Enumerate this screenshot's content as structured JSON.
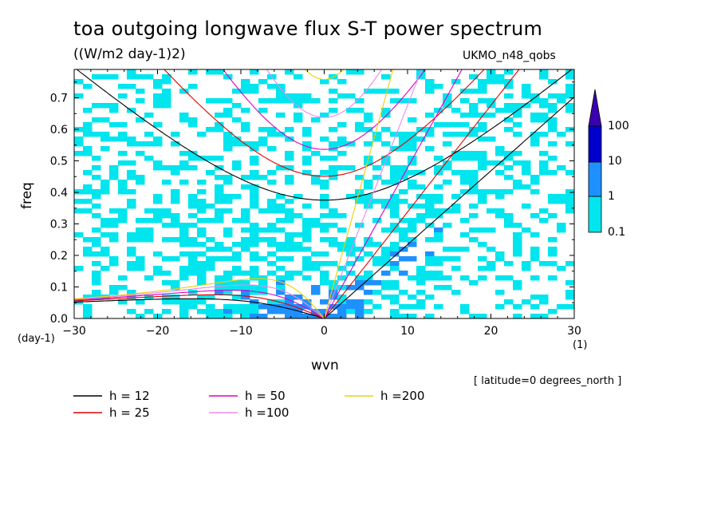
{
  "chart_data": {
    "type": "heatmap",
    "title": "toa outgoing longwave flux S-T power spectrum",
    "units": "((W/m2 day-1)2)",
    "model_label": "UKMO_n48_qobs",
    "xlabel": "wvn",
    "ylabel": "freq",
    "x_unit": "(1)",
    "y_unit": "(day-1)",
    "footnote": "[ latitude=0 degrees_north ]",
    "xlim": [
      -30,
      30
    ],
    "ylim": [
      0,
      0.79
    ],
    "xticks": [
      -30,
      -20,
      -10,
      0,
      10,
      20,
      30
    ],
    "xtick_labels": [
      "−30",
      "−20",
      "−10",
      "0",
      "10",
      "20",
      "30"
    ],
    "yticks": [
      0,
      0.1,
      0.2,
      0.3,
      0.4,
      0.5,
      0.6,
      0.7
    ],
    "ytick_labels": [
      "0.0",
      "0.1",
      "0.2",
      "0.3",
      "0.4",
      "0.5",
      "0.6",
      "0.7"
    ],
    "colorbar": {
      "levels": [
        "0.1",
        "1",
        "10",
        "100"
      ],
      "colors": [
        "#ffffff",
        "#00e5ee",
        "#1e90ff",
        "#0000cd",
        "#3a00b0"
      ]
    },
    "dispersion_curves": [
      {
        "label": "h = 12",
        "color": "#000000"
      },
      {
        "label": "h = 25",
        "color": "#e00000"
      },
      {
        "label": "h = 50",
        "color": "#dd00cc"
      },
      {
        "label": "h =100",
        "color": "#ee88ee"
      },
      {
        "label": "h =200",
        "color": "#f0d000"
      }
    ]
  }
}
